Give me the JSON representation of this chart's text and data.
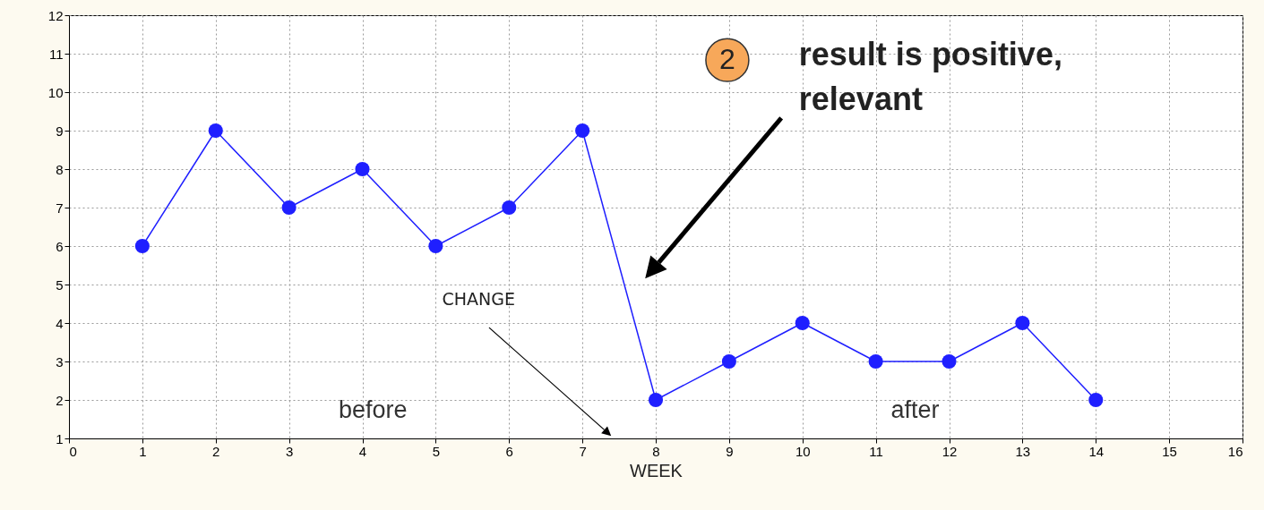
{
  "chart_data": {
    "type": "line",
    "xlabel": "WEEK",
    "x": [
      1,
      2,
      3,
      4,
      5,
      6,
      7,
      8,
      9,
      10,
      11,
      12,
      13,
      14
    ],
    "series": [
      {
        "color": "#1f1fff",
        "values": [
          6,
          9,
          7,
          8,
          6,
          7,
          9,
          2,
          3,
          4,
          3,
          3,
          4,
          2
        ]
      }
    ],
    "xlim": [
      0,
      16
    ],
    "xticks": [
      0,
      1,
      2,
      3,
      4,
      5,
      6,
      7,
      8,
      9,
      10,
      11,
      12,
      13,
      14,
      15,
      16
    ],
    "ylim": [
      1,
      12
    ],
    "yticks": [
      1,
      2,
      3,
      4,
      5,
      6,
      7,
      8,
      9,
      10,
      11,
      12
    ],
    "grid": true,
    "marker": "circle",
    "line_style": "solid",
    "annotations": [
      "CHANGE",
      "before",
      "after",
      "2",
      "result is positive,\nrelevant"
    ]
  }
}
